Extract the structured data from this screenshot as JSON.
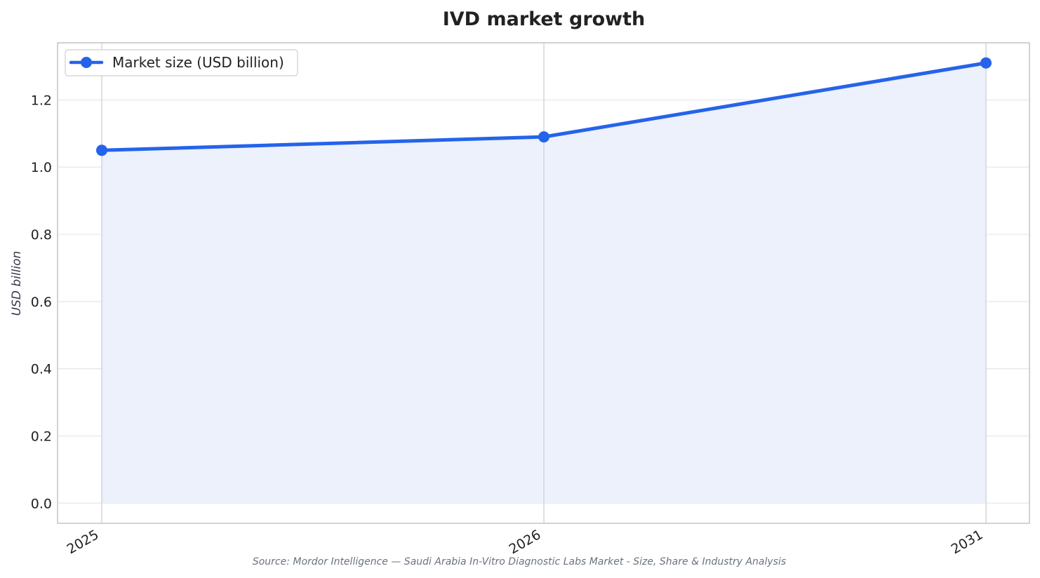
{
  "chart_data": {
    "type": "area",
    "title": "IVD market growth",
    "ylabel": "USD billion",
    "xlabel": "",
    "categories": [
      "2025",
      "2026",
      "2031"
    ],
    "series": [
      {
        "name": "Market size (USD billion)",
        "values": [
          1.05,
          1.09,
          1.31
        ]
      }
    ],
    "ylim": [
      -0.06,
      1.37
    ],
    "yticks": [
      "0.0",
      "0.2",
      "0.4",
      "0.6",
      "0.8",
      "1.0",
      "1.2"
    ],
    "grid": true,
    "legend": "top-left",
    "colors": {
      "line": "#2563eb",
      "fill": "#ecf1fc",
      "grid": "#e6e6e6",
      "axes": "#c0c4cc",
      "vline": "#c8ccd6"
    },
    "source": "Source: Mordor Intelligence — Saudi Arabia In-Vitro Diagnostic Labs Market - Size, Share & Industry Analysis"
  }
}
